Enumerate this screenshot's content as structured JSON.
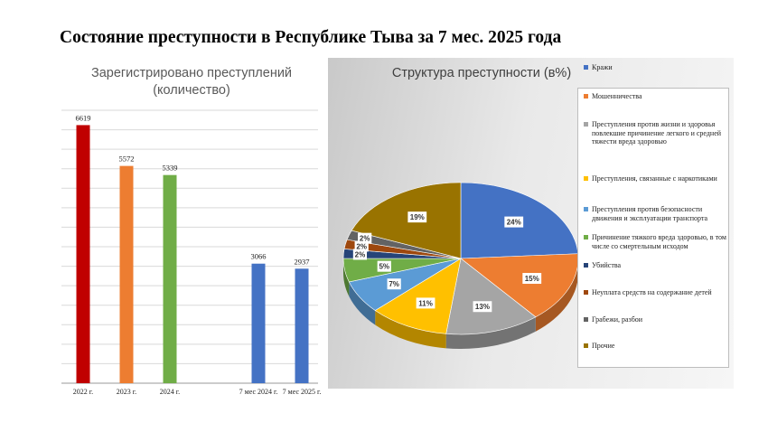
{
  "page": {
    "title": "Состояние преступности  в Республике Тыва за  7 мес. 2025 года"
  },
  "chart_data": [
    {
      "type": "bar",
      "title": "Зарегистрировано преступлений (количество)",
      "categories": [
        "2022 г.",
        "2023 г.",
        "2024 г.",
        "7 мес 2024 г.",
        "7 мес 2025 г."
      ],
      "values": [
        6619,
        5572,
        5339,
        3066,
        2937
      ],
      "colors": [
        "#c00000",
        "#ed7d31",
        "#70ad47",
        "#4472c4",
        "#4472c4"
      ],
      "ylim": [
        0,
        7000
      ],
      "grid": true
    },
    {
      "type": "pie",
      "title": "Структура преступности (в%)",
      "legend": "right",
      "slices": [
        {
          "label": "Кражи",
          "value": 24,
          "display": "24%",
          "color": "#4472c4"
        },
        {
          "label": "Мошенничества",
          "value": 15,
          "display": "15%",
          "color": "#ed7d31"
        },
        {
          "label": "Преступления против жизни и здоровья повлекшие причинение легкого и средней тяжести вреда здоровью",
          "value": 13,
          "display": "13%",
          "color": "#a5a5a5"
        },
        {
          "label": "Преступления, связанные с наркотиками",
          "value": 11,
          "display": "11%",
          "color": "#ffc000"
        },
        {
          "label": "Преступления против безопасности движения и эксплуатации транспорта",
          "value": 7,
          "display": "7%",
          "color": "#5b9bd5"
        },
        {
          "label": "Причинение тяжкого вреда здоровью, в том числе со смертельным исходом",
          "value": 5,
          "display": "5%",
          "color": "#70ad47"
        },
        {
          "label": "Убийства",
          "value": 2,
          "display": "2%",
          "color": "#264478"
        },
        {
          "label": "Неуплата средств на содержание детей",
          "value": 2,
          "display": "2%",
          "color": "#9e480e"
        },
        {
          "label": "Грабежи, разбои",
          "value": 2,
          "display": "2%",
          "color": "#636363"
        },
        {
          "label": "Прочие",
          "value": 19,
          "display": "19%",
          "color": "#997300"
        }
      ]
    }
  ]
}
